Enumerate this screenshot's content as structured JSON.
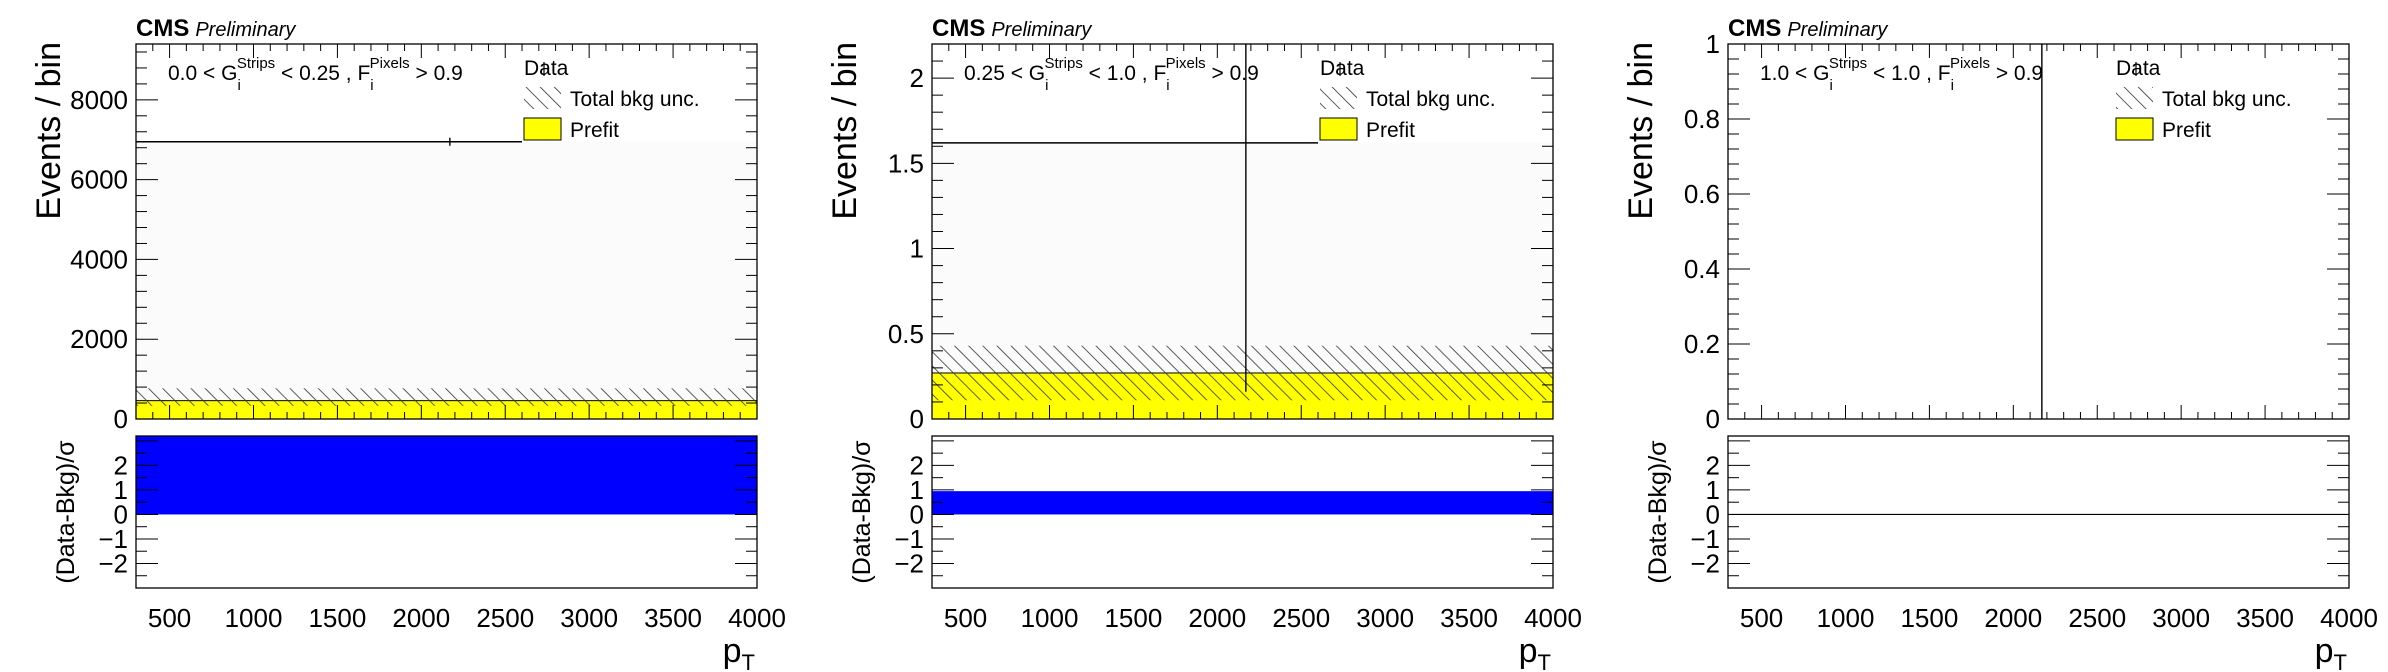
{
  "experiment_label": "CMS",
  "status_label": "Preliminary",
  "x_title": "p",
  "x_title_sub": "T",
  "y_title_top": "Events / bin",
  "y_title_bottom": "(Data-Bkg)/σ",
  "legend": {
    "data": "Data",
    "unc": "Total bkg unc.",
    "prefit": "Prefit"
  },
  "colors": {
    "prefit": "#ffff00",
    "pull": "#0000ff",
    "unc_hatch": "#333333",
    "line": "#000000"
  },
  "chart_data": [
    {
      "type": "bar",
      "region": {
        "g_low": "0.0",
        "g_high": "0.25",
        "f_cut": "0.9"
      },
      "x_edges": [
        300,
        4000
      ],
      "xlim": [
        300,
        4000
      ],
      "x_ticks": [
        500,
        1000,
        1500,
        2000,
        2500,
        3000,
        3500,
        4000
      ],
      "ylim": [
        0,
        9400
      ],
      "y_ticks": [
        0,
        2000,
        4000,
        6000,
        8000
      ],
      "y_tick_labels": [
        "0",
        "2000",
        "4000",
        "6000",
        "8000"
      ],
      "series": [
        {
          "name": "Data",
          "values": [
            6950
          ],
          "x_error": [
            300,
            2600
          ],
          "y_error": [
            0,
            0
          ]
        },
        {
          "name": "Total bkg unc.",
          "values": [
            460
          ],
          "band": [
            330,
            770
          ]
        },
        {
          "name": "Prefit",
          "values": [
            460
          ]
        }
      ],
      "pull": {
        "values": [
          3.2
        ],
        "ylim": [
          -3,
          3.2
        ],
        "y_ticks": [
          -2,
          -1,
          0,
          1,
          2
        ],
        "y_tick_labels": [
          "−2",
          "−1",
          "0",
          "1",
          "2"
        ]
      }
    },
    {
      "type": "bar",
      "region": {
        "g_low": "0.25",
        "g_high": "1.0",
        "f_cut": "0.9"
      },
      "x_edges": [
        300,
        4000
      ],
      "xlim": [
        300,
        4000
      ],
      "x_ticks": [
        500,
        1000,
        1500,
        2000,
        2500,
        3000,
        3500,
        4000
      ],
      "ylim": [
        0,
        2.2
      ],
      "y_ticks": [
        0,
        0.5,
        1,
        1.5,
        2
      ],
      "y_tick_labels": [
        "0",
        "0.5",
        "1",
        "1.5",
        "2"
      ],
      "series": [
        {
          "name": "Data",
          "values": [
            1.62
          ],
          "x_error": [
            300,
            2600
          ],
          "x_marker": 2170,
          "y_error": [
            0.16,
            2.2
          ]
        },
        {
          "name": "Total bkg unc.",
          "values": [
            0.27
          ],
          "band": [
            0.11,
            0.43
          ]
        },
        {
          "name": "Prefit",
          "values": [
            0.27
          ]
        }
      ],
      "pull": {
        "values": [
          0.95
        ],
        "ylim": [
          -3,
          3.2
        ],
        "y_ticks": [
          -2,
          -1,
          0,
          1,
          2
        ],
        "y_tick_labels": [
          "−2",
          "−1",
          "0",
          "1",
          "2"
        ]
      }
    },
    {
      "type": "bar",
      "region": {
        "g_low": "1.0",
        "g_high": "1.0",
        "f_cut": "0.9"
      },
      "x_edges": [
        300,
        4000
      ],
      "xlim": [
        300,
        4000
      ],
      "x_ticks": [
        500,
        1000,
        1500,
        2000,
        2500,
        3000,
        3500,
        4000
      ],
      "ylim": [
        0,
        1
      ],
      "y_ticks": [
        0,
        0.2,
        0.4,
        0.6,
        0.8,
        1
      ],
      "y_tick_labels": [
        "0",
        "0.2",
        "0.4",
        "0.6",
        "0.8",
        "1"
      ],
      "series": [
        {
          "name": "Data",
          "values": [
            0
          ],
          "x_marker": 2170,
          "y_error": [
            0,
            1
          ]
        },
        {
          "name": "Total bkg unc.",
          "values": [
            0
          ],
          "band": [
            0,
            0
          ]
        },
        {
          "name": "Prefit",
          "values": [
            0
          ]
        }
      ],
      "pull": {
        "values": [
          0
        ],
        "ylim": [
          -3,
          3.2
        ],
        "y_ticks": [
          -2,
          -1,
          0,
          1,
          2
        ],
        "y_tick_labels": [
          "−2",
          "−1",
          "0",
          "1",
          "2"
        ]
      }
    }
  ]
}
